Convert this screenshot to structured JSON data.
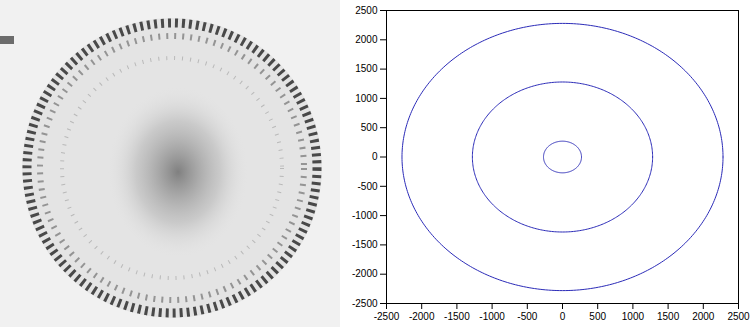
{
  "chart_data": {
    "type": "circle",
    "series": [
      {
        "center": [
          0,
          0
        ],
        "radius": 2280
      },
      {
        "center": [
          0,
          0
        ],
        "radius": 1280
      },
      {
        "center": [
          0,
          0
        ],
        "radius": 270
      }
    ],
    "color": "#2b2bb8",
    "xlim": [
      -2500,
      2500
    ],
    "ylim": [
      -2500,
      2500
    ],
    "xticks": [
      -2500,
      -2000,
      -1500,
      -1000,
      -500,
      0,
      500,
      1000,
      1500,
      2000,
      2500
    ],
    "yticks": [
      -2500,
      -2000,
      -1500,
      -1000,
      -500,
      0,
      500,
      1000,
      1500,
      2000,
      2500
    ],
    "grid": false
  }
}
